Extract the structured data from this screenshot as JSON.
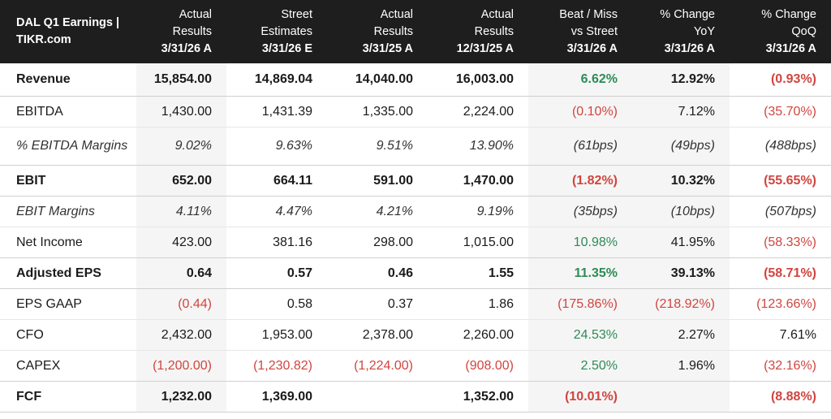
{
  "header": {
    "corner": "DAL Q1 Earnings | TIKR.com",
    "columns": [
      {
        "line1": "Actual",
        "line2": "Results",
        "date": "3/31/26 A"
      },
      {
        "line1": "Street",
        "line2": "Estimates",
        "date": "3/31/26 E"
      },
      {
        "line1": "Actual",
        "line2": "Results",
        "date": "3/31/25 A"
      },
      {
        "line1": "Actual",
        "line2": "Results",
        "date": "12/31/25 A"
      },
      {
        "line1": "Beat / Miss",
        "line2": "vs Street",
        "date": "3/31/26 A"
      },
      {
        "line1": "% Change",
        "line2": "YoY",
        "date": "3/31/26 A"
      },
      {
        "line1": "% Change",
        "line2": "QoQ",
        "date": "3/31/26 A"
      }
    ]
  },
  "rows": [
    {
      "label": "Revenue",
      "style": "bold",
      "cells": [
        {
          "v": "15,854.00",
          "c": "neu"
        },
        {
          "v": "14,869.04",
          "c": "neu"
        },
        {
          "v": "14,040.00",
          "c": "neu"
        },
        {
          "v": "16,003.00",
          "c": "neu"
        },
        {
          "v": "6.62%",
          "c": "pos"
        },
        {
          "v": "12.92%",
          "c": "neu"
        },
        {
          "v": "(0.93%)",
          "c": "neg"
        }
      ]
    },
    {
      "label": "EBITDA",
      "style": "normal",
      "cells": [
        {
          "v": "1,430.00",
          "c": "neu"
        },
        {
          "v": "1,431.39",
          "c": "neu"
        },
        {
          "v": "1,335.00",
          "c": "neu"
        },
        {
          "v": "2,224.00",
          "c": "neu"
        },
        {
          "v": "(0.10%)",
          "c": "neg"
        },
        {
          "v": "7.12%",
          "c": "neu"
        },
        {
          "v": "(35.70%)",
          "c": "neg"
        }
      ]
    },
    {
      "label": "% EBITDA Margins",
      "style": "ital",
      "cells": [
        {
          "v": "9.02%",
          "c": "neu"
        },
        {
          "v": "9.63%",
          "c": "neu"
        },
        {
          "v": "9.51%",
          "c": "neu"
        },
        {
          "v": "13.90%",
          "c": "neu"
        },
        {
          "v": "(61bps)",
          "c": "neg"
        },
        {
          "v": "(49bps)",
          "c": "neg"
        },
        {
          "v": "(488bps)",
          "c": "neg"
        }
      ]
    },
    {
      "label": "EBIT",
      "style": "bold",
      "cells": [
        {
          "v": "652.00",
          "c": "neu"
        },
        {
          "v": "664.11",
          "c": "neu"
        },
        {
          "v": "591.00",
          "c": "neu"
        },
        {
          "v": "1,470.00",
          "c": "neu"
        },
        {
          "v": "(1.82%)",
          "c": "neg"
        },
        {
          "v": "10.32%",
          "c": "neu"
        },
        {
          "v": "(55.65%)",
          "c": "neg"
        }
      ]
    },
    {
      "label": "EBIT Margins",
      "style": "ital",
      "cells": [
        {
          "v": "4.11%",
          "c": "neu"
        },
        {
          "v": "4.47%",
          "c": "neu"
        },
        {
          "v": "4.21%",
          "c": "neu"
        },
        {
          "v": "9.19%",
          "c": "neu"
        },
        {
          "v": "(35bps)",
          "c": "neg"
        },
        {
          "v": "(10bps)",
          "c": "neg"
        },
        {
          "v": "(507bps)",
          "c": "neg"
        }
      ]
    },
    {
      "label": "Net Income",
      "style": "normal",
      "cells": [
        {
          "v": "423.00",
          "c": "neu"
        },
        {
          "v": "381.16",
          "c": "neu"
        },
        {
          "v": "298.00",
          "c": "neu"
        },
        {
          "v": "1,015.00",
          "c": "neu"
        },
        {
          "v": "10.98%",
          "c": "pos"
        },
        {
          "v": "41.95%",
          "c": "neu"
        },
        {
          "v": "(58.33%)",
          "c": "neg"
        }
      ]
    },
    {
      "label": "Adjusted EPS",
      "style": "bold",
      "cells": [
        {
          "v": "0.64",
          "c": "neu"
        },
        {
          "v": "0.57",
          "c": "neu"
        },
        {
          "v": "0.46",
          "c": "neu"
        },
        {
          "v": "1.55",
          "c": "neu"
        },
        {
          "v": "11.35%",
          "c": "pos"
        },
        {
          "v": "39.13%",
          "c": "neu"
        },
        {
          "v": "(58.71%)",
          "c": "neg"
        }
      ]
    },
    {
      "label": "EPS GAAP",
      "style": "normal",
      "cells": [
        {
          "v": "(0.44)",
          "c": "neg"
        },
        {
          "v": "0.58",
          "c": "neu"
        },
        {
          "v": "0.37",
          "c": "neu"
        },
        {
          "v": "1.86",
          "c": "neu"
        },
        {
          "v": "(175.86%)",
          "c": "neg"
        },
        {
          "v": "(218.92%)",
          "c": "neg"
        },
        {
          "v": "(123.66%)",
          "c": "neg"
        }
      ]
    },
    {
      "label": "CFO",
      "style": "normal",
      "cells": [
        {
          "v": "2,432.00",
          "c": "neu"
        },
        {
          "v": "1,953.00",
          "c": "neu"
        },
        {
          "v": "2,378.00",
          "c": "neu"
        },
        {
          "v": "2,260.00",
          "c": "neu"
        },
        {
          "v": "24.53%",
          "c": "pos"
        },
        {
          "v": "2.27%",
          "c": "neu"
        },
        {
          "v": "7.61%",
          "c": "neu"
        }
      ]
    },
    {
      "label": "CAPEX",
      "style": "normal",
      "cells": [
        {
          "v": "(1,200.00)",
          "c": "neg"
        },
        {
          "v": "(1,230.82)",
          "c": "neg"
        },
        {
          "v": "(1,224.00)",
          "c": "neg"
        },
        {
          "v": "(908.00)",
          "c": "neg"
        },
        {
          "v": "2.50%",
          "c": "pos"
        },
        {
          "v": "1.96%",
          "c": "neu"
        },
        {
          "v": "(32.16%)",
          "c": "neg"
        }
      ]
    },
    {
      "label": "FCF",
      "style": "bold",
      "cells": [
        {
          "v": "1,232.00",
          "c": "neu"
        },
        {
          "v": "1,369.00",
          "c": "neu"
        },
        {
          "v": "",
          "c": "neu"
        },
        {
          "v": "1,352.00",
          "c": "neu"
        },
        {
          "v": "(10.01%)",
          "c": "neg"
        },
        {
          "v": "",
          "c": "neu"
        },
        {
          "v": "(8.88%)",
          "c": "neg"
        }
      ]
    }
  ]
}
